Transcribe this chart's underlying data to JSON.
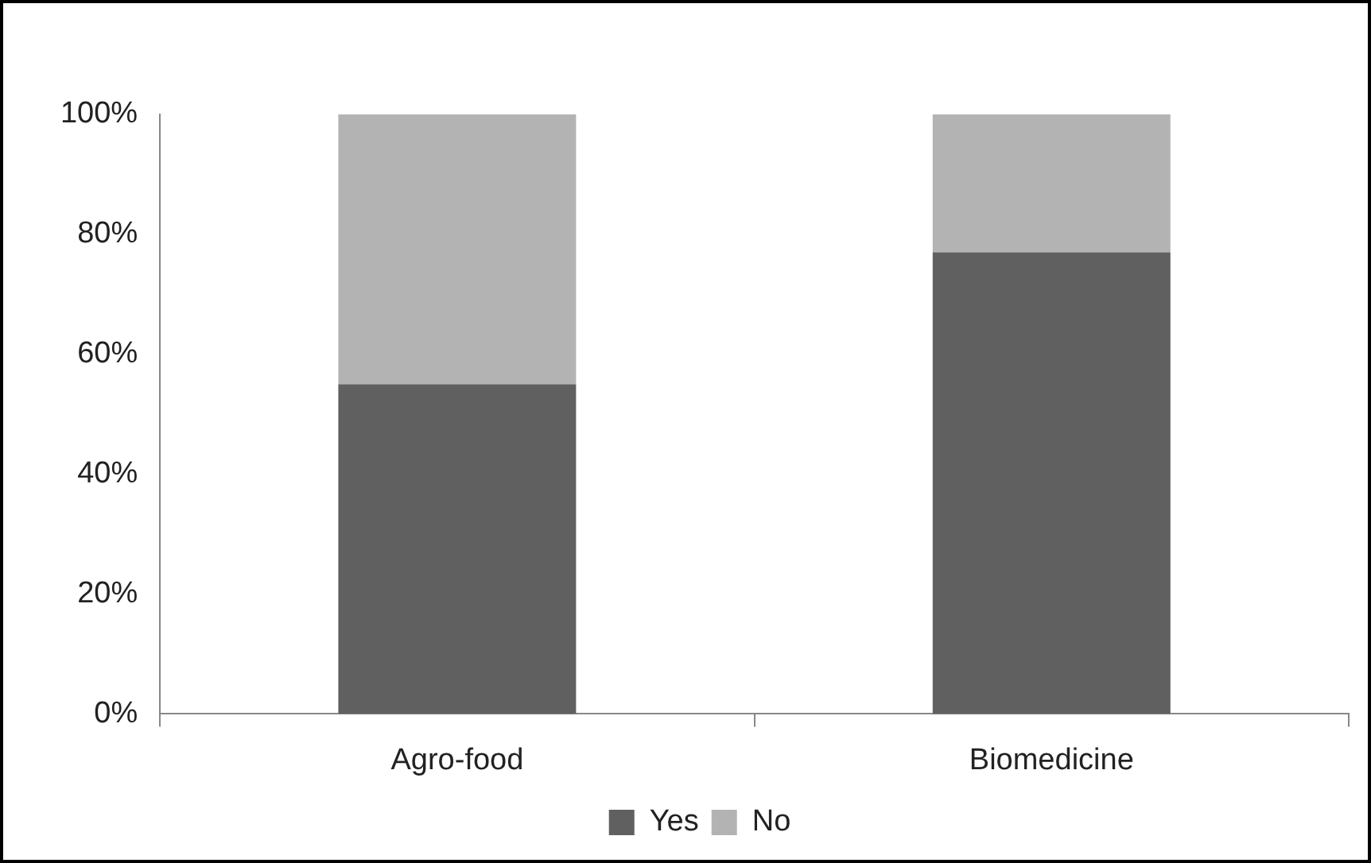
{
  "chart_data": {
    "type": "bar",
    "stacked": true,
    "categories": [
      "Agro-food",
      "Biomedicine"
    ],
    "series": [
      {
        "name": "Yes",
        "color": "#606060",
        "values": [
          55,
          77
        ]
      },
      {
        "name": "No",
        "color": "#b3b3b3",
        "values": [
          45,
          23
        ]
      }
    ],
    "ylim": [
      0,
      100
    ],
    "yticks": [
      {
        "value": 0,
        "label": "0%"
      },
      {
        "value": 20,
        "label": "20%"
      },
      {
        "value": 40,
        "label": "40%"
      },
      {
        "value": 60,
        "label": "60%"
      },
      {
        "value": 80,
        "label": "80%"
      },
      {
        "value": 100,
        "label": "100%"
      }
    ],
    "grid": false,
    "legend": "bottom"
  }
}
